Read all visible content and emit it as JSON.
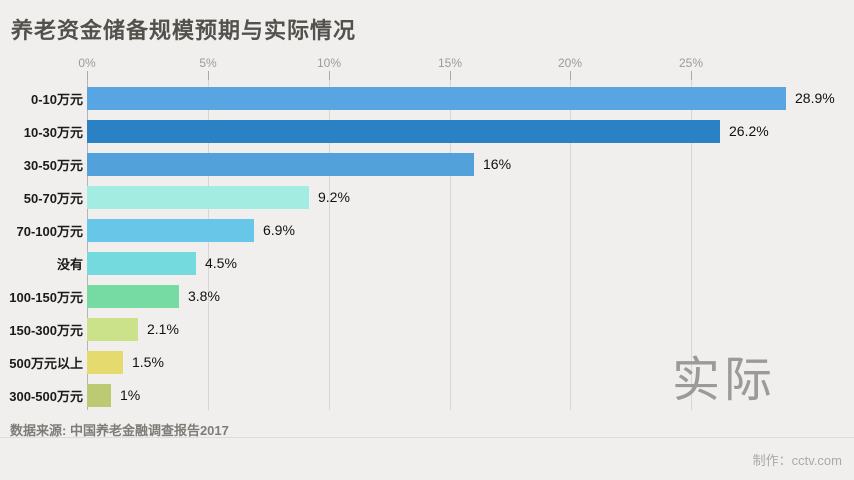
{
  "page": {
    "background": "#f0efed"
  },
  "header": {
    "title": "养老资金储备规模预期与实际情况"
  },
  "chart_data": {
    "type": "bar",
    "orientation": "horizontal",
    "title": "养老资金储备规模预期与实际情况",
    "categories": [
      "0-10万元",
      "10-30万元",
      "30-50万元",
      "50-70万元",
      "70-100万元",
      "没有",
      "100-150万元",
      "150-300万元",
      "500万元以上",
      "300-500万元"
    ],
    "values": [
      28.9,
      26.2,
      16,
      9.2,
      6.9,
      4.5,
      3.8,
      2.1,
      1.5,
      1
    ],
    "value_labels": [
      "28.9%",
      "26.2%",
      "16%",
      "9.2%",
      "6.9%",
      "4.5%",
      "3.8%",
      "2.1%",
      "1.5%",
      "1%"
    ],
    "bar_colors": [
      "#57a6e2",
      "#2a82c4",
      "#52a1da",
      "#a3ece2",
      "#68c7e9",
      "#74dade",
      "#76dba3",
      "#cbe18a",
      "#e4da6e",
      "#bdca74"
    ],
    "xlabel": "",
    "ylabel": "",
    "axis": {
      "position": "top",
      "tick_labels": [
        "0%",
        "5%",
        "10%",
        "15%",
        "20%",
        "25%"
      ],
      "tick_values": [
        0,
        5,
        10,
        15,
        20,
        25
      ],
      "xlim": [
        0,
        25
      ],
      "grid": true
    },
    "legend": "none"
  },
  "watermark": {
    "text": "实际",
    "color": "#9a9a98"
  },
  "footer": {
    "source": "数据来源: 中国养老金融调查报告2017",
    "credit": "制作：cctv.com"
  }
}
